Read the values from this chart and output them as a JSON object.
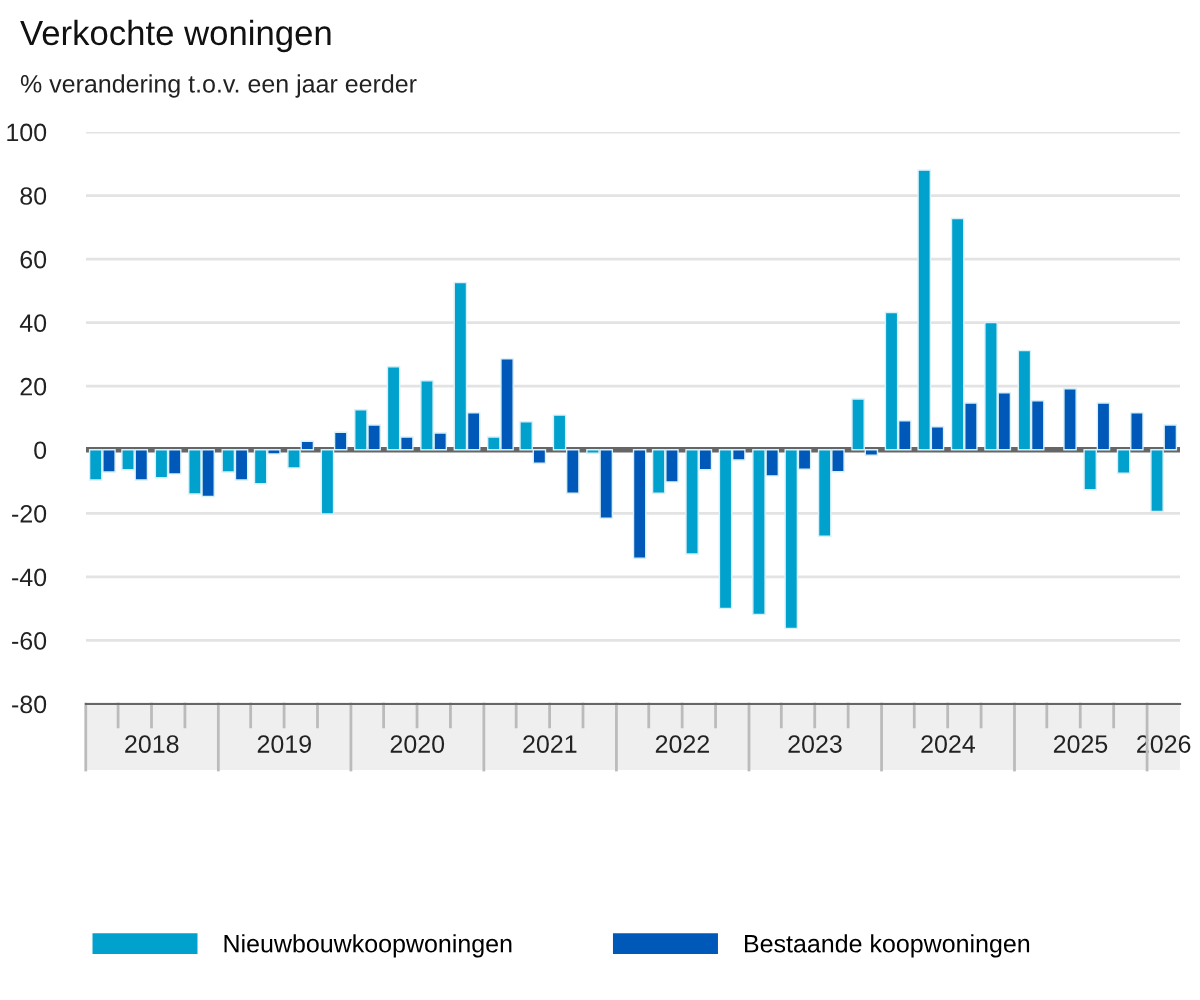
{
  "chart_data": {
    "type": "bar",
    "title": "Verkochte woningen",
    "subtitle": "% verandering t.o.v. een jaar eerder",
    "x": [
      "2018-02-15",
      "2018-05-15",
      "2018-08-15",
      "2018-11-15",
      "2019-02-15",
      "2019-05-15",
      "2019-08-15",
      "2019-11-15",
      "2020-02-15",
      "2020-05-15",
      "2020-08-15",
      "2020-11-15",
      "2021-02-15",
      "2021-05-15",
      "2021-08-15",
      "2021-11-15",
      "2022-02-15",
      "2022-05-15",
      "2022-08-15",
      "2022-11-15",
      "2023-02-15",
      "2023-05-15",
      "2023-08-15",
      "2023-11-15",
      "2024-02-15",
      "2024-05-15",
      "2024-08-15",
      "2024-11-15",
      "2025-02-15",
      "2025-05-15",
      "2025-08-15",
      "2025-11-15",
      "2026-02-15"
    ],
    "series": [
      {
        "name": "Nieuwbouwkoopwoningen",
        "color": "#00a1cd",
        "values": [
          -9.5,
          -6.3,
          -8.8,
          -13.9,
          -7,
          -10.7,
          -5.7,
          -20.2,
          12.6,
          26.1,
          21.7,
          52.6,
          4.0,
          8.8,
          10.9,
          -1.1,
          null,
          -13.7,
          -32.8,
          -49.9,
          -51.8,
          -56.2,
          -27.2,
          16.0,
          43.2,
          88,
          72.8,
          40,
          31.2,
          null,
          -12.6,
          -7.4,
          -19.4
        ]
      },
      {
        "name": "Bestaande koopwoningen",
        "color": "#0058b8",
        "values": [
          -7,
          -9.5,
          -7.6,
          -14.7,
          -9.5,
          -1.3,
          2.7,
          5.5,
          7.8,
          4.0,
          5.3,
          11.6,
          28.6,
          -4.2,
          -13.7,
          -21.5,
          -34.1,
          -10.1,
          -6.3,
          -3.2,
          -8.2,
          -6.1,
          -6.9,
          -1.7,
          9.1,
          7.2,
          14.7,
          17.9,
          15.4,
          19.2,
          14.7,
          11.6,
          7.8
        ]
      }
    ],
    "xlim": [
      "2018-01-01",
      "2026-04-01"
    ],
    "xticks": [
      {
        "value": "2018-07-01",
        "label": "2018"
      },
      {
        "value": "2019-07-01",
        "label": "2019"
      },
      {
        "value": "2020-07-01",
        "label": "2020"
      },
      {
        "value": "2021-07-01",
        "label": "2021"
      },
      {
        "value": "2022-07-01",
        "label": "2022"
      },
      {
        "value": "2023-07-01",
        "label": "2023"
      },
      {
        "value": "2024-07-01",
        "label": "2024"
      },
      {
        "value": "2025-07-01",
        "label": "2025"
      },
      {
        "value": "2026-02-15",
        "label": "2026"
      }
    ],
    "ylim": [
      -80,
      100
    ],
    "yticks": [
      -80,
      -60,
      -40,
      -20,
      0,
      20,
      40,
      60,
      80,
      100
    ],
    "grid": "y",
    "legend": "bottom"
  }
}
